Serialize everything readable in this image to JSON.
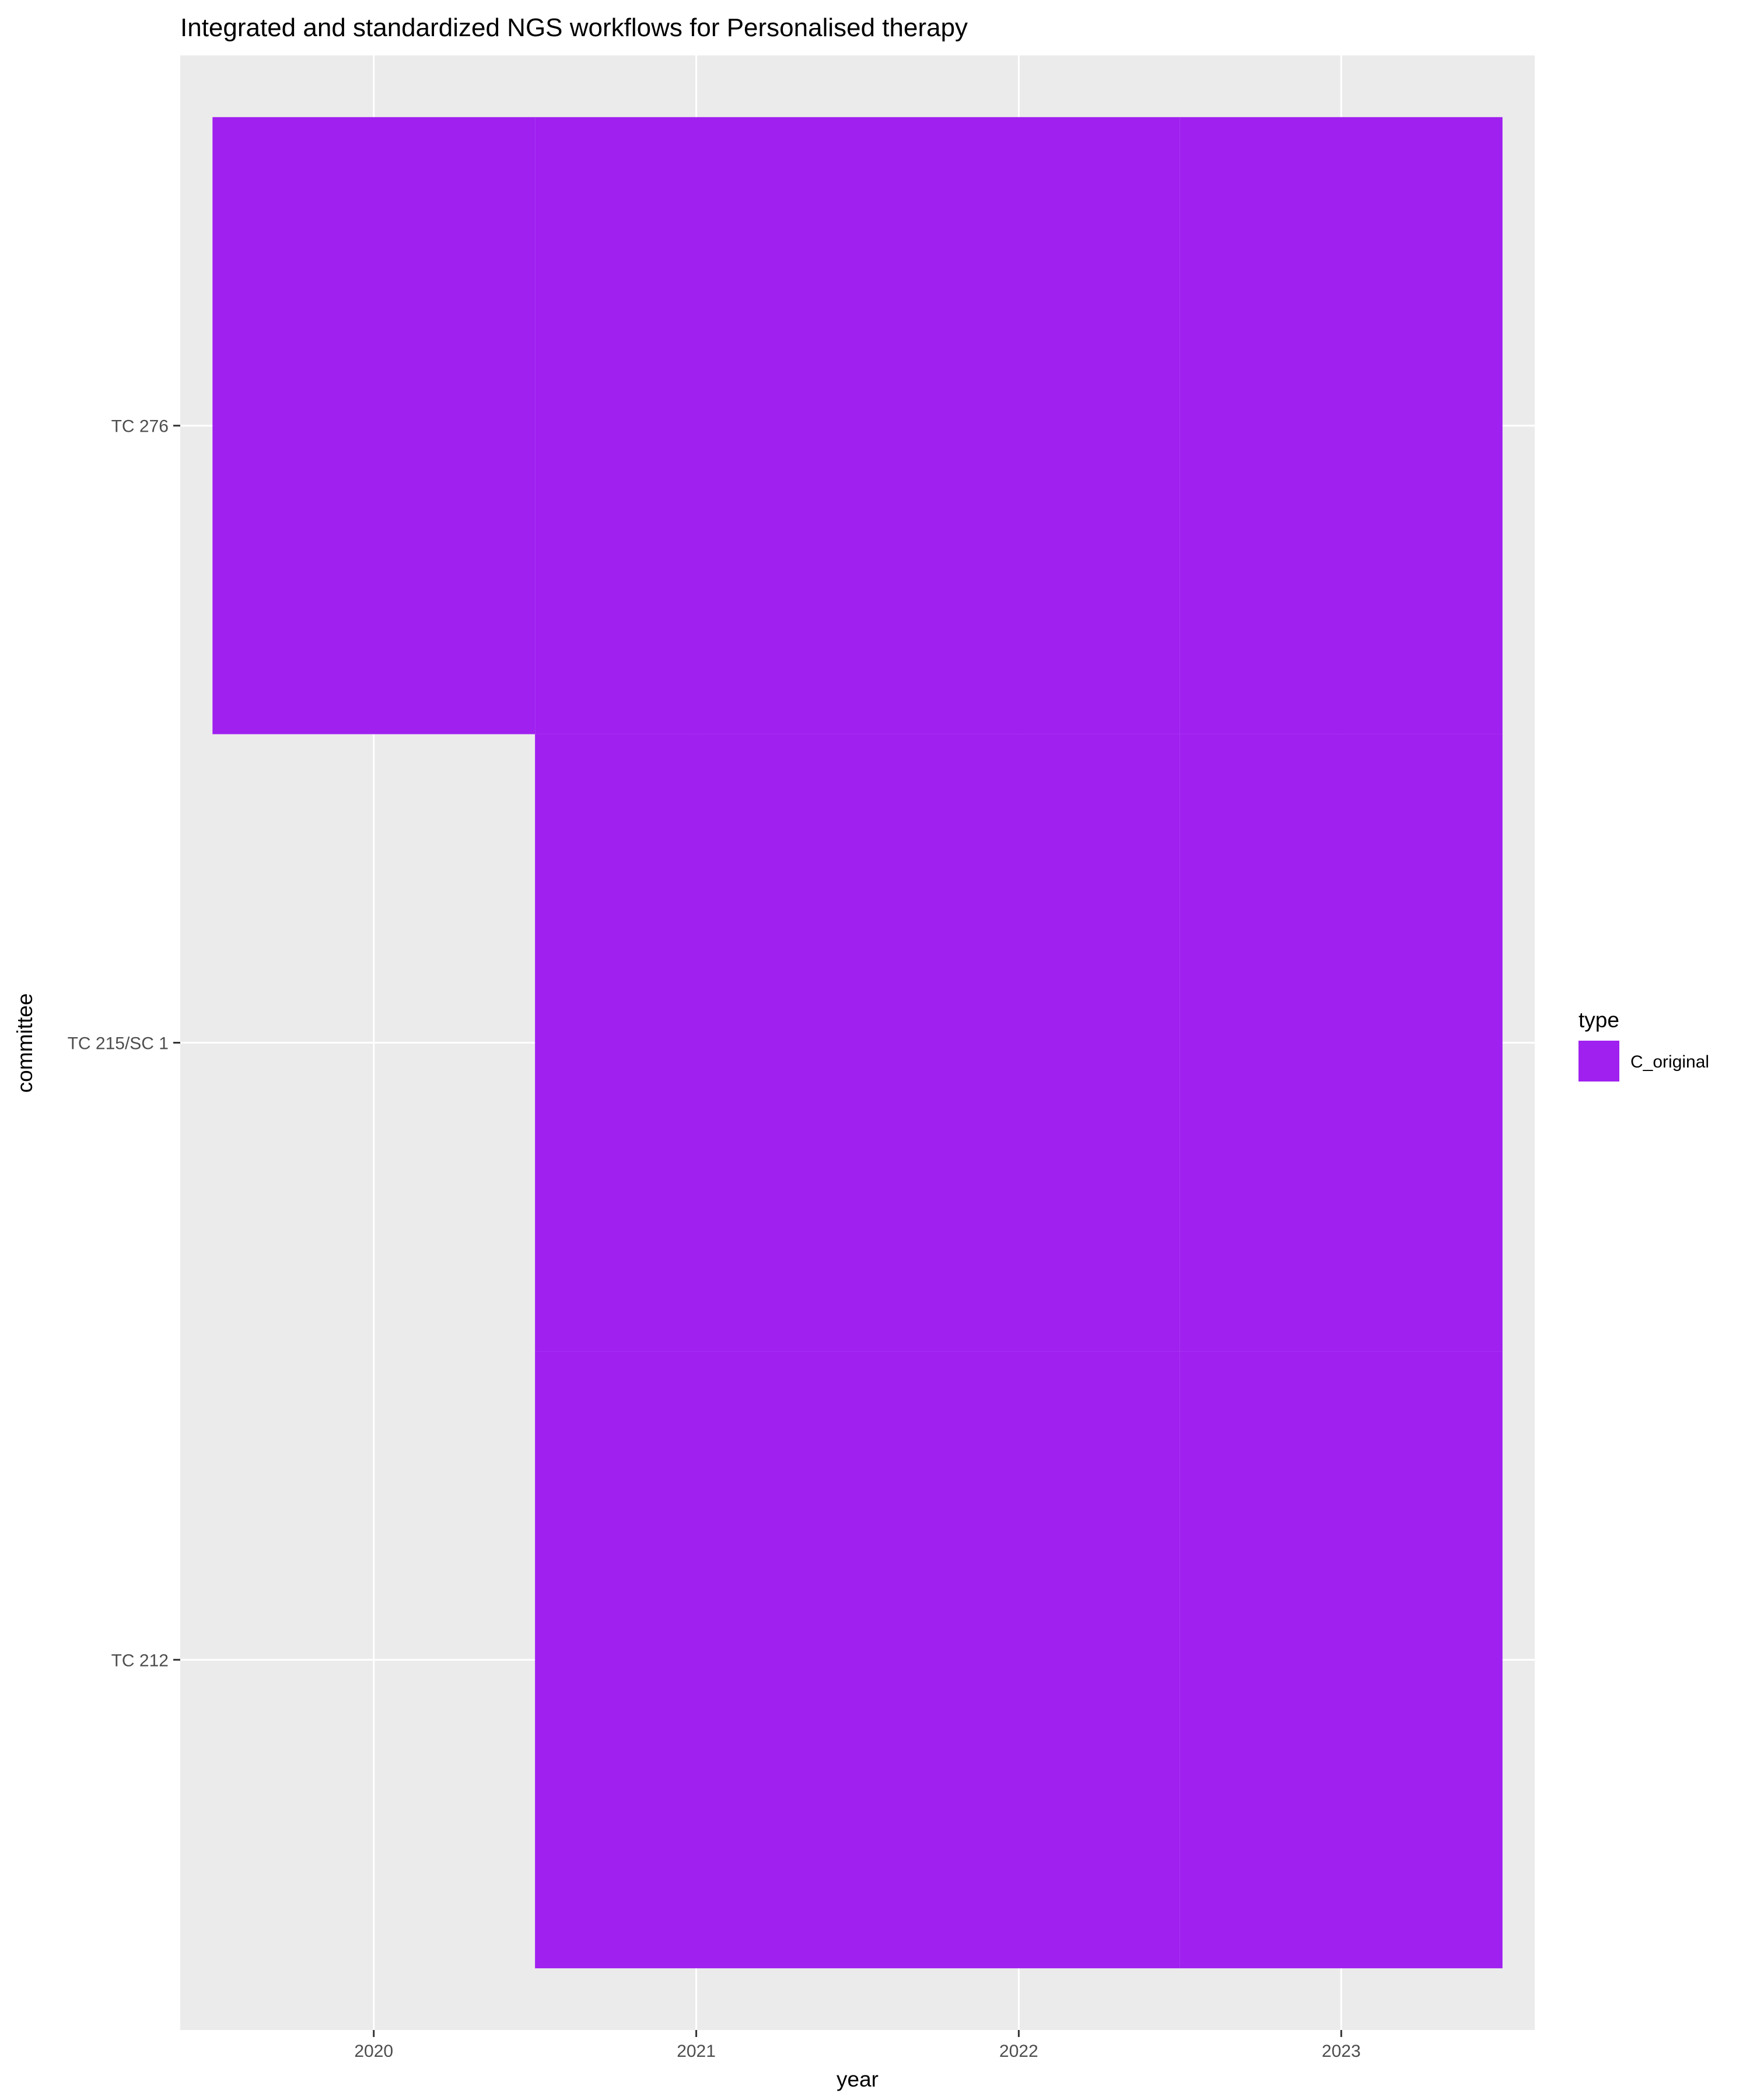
{
  "chart_data": {
    "type": "heatmap",
    "title": "Integrated and standardized NGS workflows for Personalised therapy",
    "xlabel": "year",
    "ylabel": "committee",
    "x_categories": [
      "2020",
      "2021",
      "2022",
      "2023"
    ],
    "y_categories": [
      "TC 212",
      "TC 215/SC 1",
      "TC 276"
    ],
    "cells": [
      {
        "x": "2020",
        "y": "TC 276",
        "type": "C_original"
      },
      {
        "x": "2021",
        "y": "TC 276",
        "type": "C_original"
      },
      {
        "x": "2022",
        "y": "TC 276",
        "type": "C_original"
      },
      {
        "x": "2023",
        "y": "TC 276",
        "type": "C_original"
      },
      {
        "x": "2021",
        "y": "TC 215/SC 1",
        "type": "C_original"
      },
      {
        "x": "2022",
        "y": "TC 215/SC 1",
        "type": "C_original"
      },
      {
        "x": "2023",
        "y": "TC 215/SC 1",
        "type": "C_original"
      },
      {
        "x": "2021",
        "y": "TC 212",
        "type": "C_original"
      },
      {
        "x": "2022",
        "y": "TC 212",
        "type": "C_original"
      },
      {
        "x": "2023",
        "y": "TC 212",
        "type": "C_original"
      }
    ],
    "legend": {
      "title": "type",
      "position": "right",
      "entries": [
        {
          "label": "C_original",
          "color": "#a020f0"
        }
      ]
    },
    "grid": true
  },
  "colors": {
    "panel_background": "#ebebeb",
    "grid_line": "#ffffff",
    "tile_fill": "#a020f0"
  }
}
